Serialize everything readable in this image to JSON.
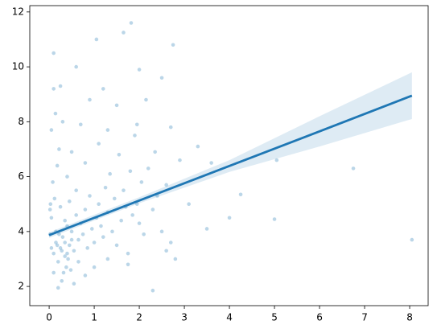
{
  "chart_data": {
    "type": "scatter",
    "color": "#1f77b4",
    "xlim": [
      -0.43,
      8.41
    ],
    "ylim": [
      1.3,
      12.23
    ],
    "xticks": [
      0,
      1,
      2,
      3,
      4,
      5,
      6,
      7,
      8
    ],
    "yticks": [
      2,
      4,
      6,
      8,
      10,
      12
    ],
    "x": [
      0.02,
      0.05,
      0.1,
      0.15,
      0.2,
      0.25,
      0.3,
      0.35,
      0.4,
      0.45,
      0.5,
      0.55,
      0.6,
      0.12,
      0.08,
      0.18,
      0.22,
      0.05,
      0.14,
      0.1,
      0.1,
      0.03,
      0.28,
      0.2,
      0.32,
      0.38,
      0.42,
      0.48,
      0.65,
      0.7,
      0.75,
      0.8,
      0.85,
      0.9,
      0.95,
      1.0,
      1.05,
      1.1,
      1.15,
      1.2,
      1.25,
      1.3,
      1.35,
      1.4,
      1.45,
      1.5,
      1.55,
      1.6,
      1.65,
      1.7,
      1.75,
      1.8,
      1.85,
      1.9,
      1.95,
      2.0,
      2.05,
      2.1,
      2.2,
      2.3,
      2.4,
      2.5,
      2.6,
      2.7,
      2.8,
      2.9,
      3.1,
      3.3,
      3.5,
      3.6,
      4.0,
      4.25,
      5.0,
      5.05,
      6.75,
      8.05,
      2.75,
      2.5,
      1.82,
      1.65,
      1.05,
      0.6,
      2.3,
      2.6,
      0.9,
      1.2,
      0.7,
      0.5,
      0.3,
      0.4,
      0.6,
      0.25,
      0.35,
      0.45,
      0.15,
      0.05,
      0.02,
      0.1,
      0.55,
      0.65,
      1.0,
      0.8,
      1.3,
      1.75,
      0.35,
      0.28,
      0.22,
      0.4,
      0.18,
      0.5,
      2.0,
      1.5,
      1.3,
      2.15,
      1.95,
      2.7,
      0.25,
      0.8,
      1.1,
      2.35
    ],
    "y": [
      3.9,
      4.5,
      3.2,
      3.6,
      2.9,
      3.4,
      3.8,
      3.1,
      4.2,
      3.5,
      4.0,
      3.3,
      4.6,
      5.2,
      5.8,
      6.4,
      7.0,
      7.7,
      8.3,
      9.2,
      10.5,
      5.0,
      2.2,
      1.95,
      2.5,
      2.7,
      3.0,
      2.6,
      3.7,
      4.3,
      3.9,
      4.8,
      3.4,
      5.3,
      4.1,
      3.6,
      4.5,
      5.0,
      4.2,
      3.8,
      5.6,
      4.7,
      6.1,
      4.0,
      5.2,
      3.5,
      6.8,
      4.4,
      5.5,
      4.9,
      3.2,
      6.2,
      4.6,
      7.5,
      5.0,
      4.3,
      5.8,
      3.9,
      6.3,
      4.8,
      5.3,
      4.0,
      5.7,
      3.6,
      3.0,
      6.6,
      5.0,
      7.1,
      4.1,
      6.5,
      4.5,
      5.35,
      4.45,
      6.6,
      6.3,
      3.7,
      10.8,
      9.6,
      11.6,
      11.25,
      11.0,
      10.0,
      1.85,
      3.3,
      8.8,
      9.2,
      7.9,
      6.9,
      8.0,
      6.0,
      5.5,
      4.9,
      4.4,
      5.1,
      4.0,
      3.4,
      4.8,
      2.5,
      2.1,
      2.9,
      2.7,
      2.4,
      3.0,
      2.8,
      3.6,
      3.3,
      3.9,
      3.2,
      3.5,
      3.7,
      9.9,
      8.6,
      7.7,
      8.8,
      7.9,
      7.8,
      9.3,
      6.5,
      7.2,
      6.9
    ],
    "regression": {
      "x": [
        0,
        2,
        4,
        6,
        8.05
      ],
      "y": [
        3.87,
        5.13,
        6.39,
        7.65,
        8.95
      ],
      "ci_lower": [
        3.77,
        5.03,
        6.17,
        7.1,
        8.1
      ],
      "ci_upper": [
        3.97,
        5.25,
        6.6,
        8.2,
        9.8
      ]
    }
  }
}
